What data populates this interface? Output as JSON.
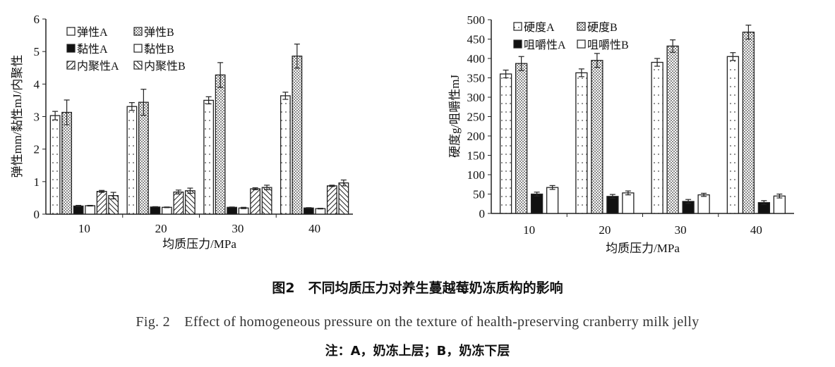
{
  "chart_data": [
    {
      "type": "bar",
      "categories": [
        "10",
        "20",
        "30",
        "40"
      ],
      "xlabel": "均质压力/MPa",
      "ylabel": "弹性mm/黏性mJ/内聚性",
      "ylim": [
        0,
        6
      ],
      "yticks": [
        "0",
        "1",
        "2",
        "3",
        "4",
        "5",
        "6"
      ],
      "legend": "top-left",
      "grid": false,
      "error_bars": true,
      "series": [
        {
          "name": "弹性A",
          "pattern": "sparse-dots",
          "values": [
            3.03,
            3.31,
            3.5,
            3.64
          ],
          "errors": [
            0.13,
            0.12,
            0.11,
            0.11
          ]
        },
        {
          "name": "弹性B",
          "pattern": "dense-dots",
          "values": [
            3.13,
            3.44,
            4.28,
            4.86
          ],
          "errors": [
            0.38,
            0.4,
            0.38,
            0.37
          ]
        },
        {
          "name": "黏性A",
          "pattern": "solid-black",
          "values": [
            0.25,
            0.22,
            0.21,
            0.19
          ],
          "errors": [
            0.02,
            0.01,
            0.01,
            0.01
          ]
        },
        {
          "name": "黏性B",
          "pattern": "white",
          "values": [
            0.26,
            0.21,
            0.19,
            0.17
          ],
          "errors": [
            0.01,
            0.01,
            0.02,
            0.01
          ]
        },
        {
          "name": "内聚性A",
          "pattern": "back-hatch",
          "values": [
            0.7,
            0.68,
            0.78,
            0.87
          ],
          "errors": [
            0.03,
            0.06,
            0.03,
            0.02
          ]
        },
        {
          "name": "内聚性B",
          "pattern": "forward-hatch",
          "values": [
            0.57,
            0.72,
            0.82,
            0.96
          ],
          "errors": [
            0.1,
            0.08,
            0.07,
            0.09
          ]
        }
      ]
    },
    {
      "type": "bar",
      "categories": [
        "10",
        "20",
        "30",
        "40"
      ],
      "xlabel": "均质压力/MPa",
      "ylabel": "硬度g/咀嚼性mJ",
      "ylim": [
        0,
        500
      ],
      "yticks": [
        "0",
        "50",
        "100",
        "150",
        "200",
        "250",
        "300",
        "350",
        "400",
        "450",
        "500"
      ],
      "legend": "top-left",
      "grid": false,
      "error_bars": true,
      "series": [
        {
          "name": "硬度A",
          "pattern": "sparse-dots",
          "values": [
            360,
            363,
            390,
            405
          ],
          "errors": [
            10,
            10,
            10,
            10
          ]
        },
        {
          "name": "硬度B",
          "pattern": "dense-dots",
          "values": [
            387,
            395,
            432,
            468
          ],
          "errors": [
            18,
            18,
            16,
            18
          ]
        },
        {
          "name": "咀嚼性A",
          "pattern": "solid-black",
          "values": [
            50,
            44,
            31,
            28
          ],
          "errors": [
            5,
            5,
            5,
            5
          ]
        },
        {
          "name": "咀嚼性B",
          "pattern": "white",
          "values": [
            67,
            53,
            48,
            45
          ],
          "errors": [
            5,
            5,
            4,
            5
          ]
        }
      ]
    }
  ],
  "caption": {
    "zh": "图2　不同均质压力对养生蔓越莓奶冻质构的影响",
    "en": "Fig. 2　Effect of homogeneous pressure on the texture of health-preserving cranberry milk jelly",
    "note": "注：A，奶冻上层；B，奶冻下层"
  }
}
